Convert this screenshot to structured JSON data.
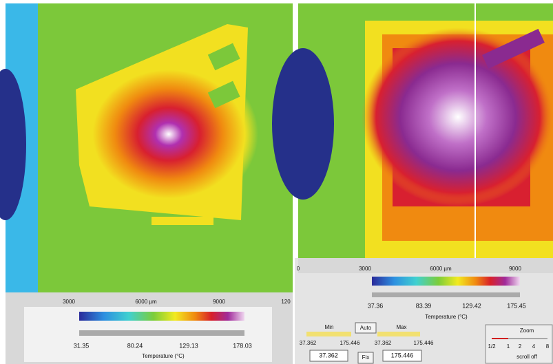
{
  "left_panel": {
    "ruler_labels": [
      "3000",
      "6000 µm",
      "9000",
      "120"
    ],
    "colorbar": {
      "labels": [
        "31.35",
        "80.24",
        "129.13",
        "178.03"
      ],
      "title": "Temperature (°C)"
    }
  },
  "right_panel": {
    "ruler_labels": [
      "0",
      "3000",
      "6000 µm",
      "9000"
    ],
    "colorbar": {
      "labels": [
        "37.36",
        "83.39",
        "129.42",
        "175.45"
      ],
      "title": "Temperature (°C)"
    }
  },
  "controls": {
    "min_label": "Min",
    "auto_button": "Auto",
    "max_label": "Max",
    "min_range": [
      "37.362",
      "175.446"
    ],
    "max_range": [
      "37.362",
      "175.446"
    ],
    "min_input": "37.362",
    "fix_button": "Fix",
    "max_input": "175.446"
  },
  "zoom": {
    "title": "Zoom",
    "levels": [
      "1/2",
      "1",
      "2",
      "4",
      "8"
    ],
    "scroll": "scroll off"
  }
}
